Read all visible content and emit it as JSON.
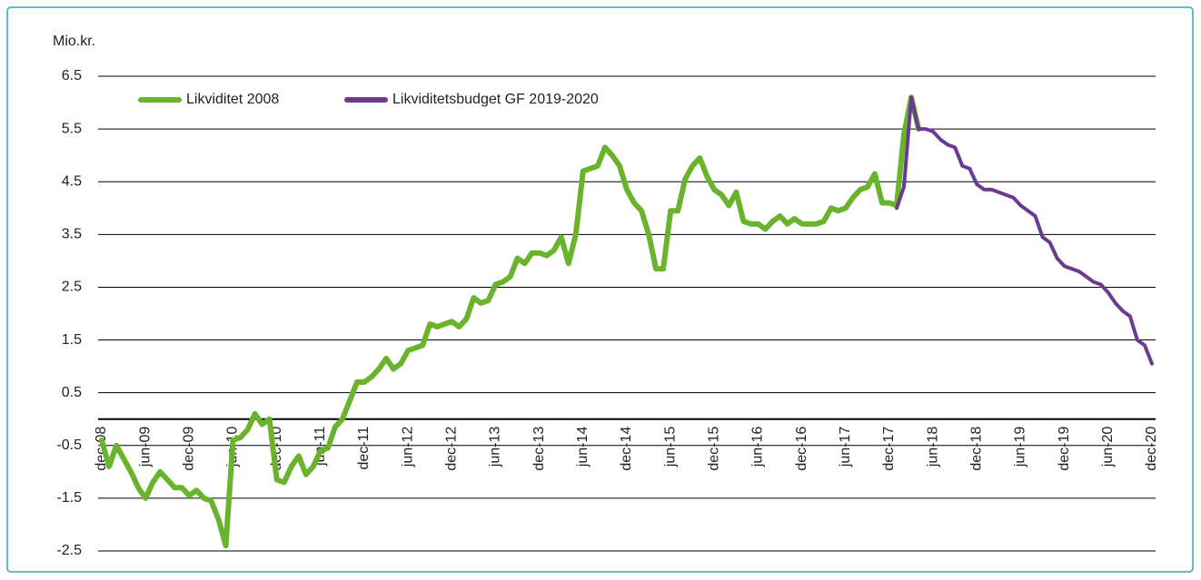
{
  "chart_data": {
    "type": "line",
    "y_label": "Mio.kr.",
    "categories": [
      "dec-08",
      null,
      null,
      null,
      null,
      null,
      "jun-09",
      null,
      null,
      null,
      null,
      null,
      "dec-09",
      null,
      null,
      null,
      null,
      null,
      "jun-10",
      null,
      null,
      null,
      null,
      null,
      "dec-10",
      null,
      null,
      null,
      null,
      null,
      "jun-11",
      null,
      null,
      null,
      null,
      null,
      "dec-11",
      null,
      null,
      null,
      null,
      null,
      "jun-12",
      null,
      null,
      null,
      null,
      null,
      "dec-12",
      null,
      null,
      null,
      null,
      null,
      "jun-13",
      null,
      null,
      null,
      null,
      null,
      "dec-13",
      null,
      null,
      null,
      null,
      null,
      "jun-14",
      null,
      null,
      null,
      null,
      null,
      "dec-14",
      null,
      null,
      null,
      null,
      null,
      "jun-15",
      null,
      null,
      null,
      null,
      null,
      "dec-15",
      null,
      null,
      null,
      null,
      null,
      "jun-16",
      null,
      null,
      null,
      null,
      null,
      "dec-16",
      null,
      null,
      null,
      null,
      null,
      "jun-17",
      null,
      null,
      null,
      null,
      null,
      "dec-17",
      null,
      null,
      null,
      null,
      null,
      "jun-18",
      null,
      null,
      null,
      null,
      null,
      "dec-18",
      null,
      null,
      null,
      null,
      null,
      "jun-19",
      null,
      null,
      null,
      null,
      null,
      "dec-19",
      null,
      null,
      null,
      null,
      null,
      "jun-20",
      null,
      null,
      null,
      null,
      null,
      "dec-20"
    ],
    "series": [
      {
        "name": "Likviditet 2008",
        "color": "#6ab42d",
        "values": [
          -0.4,
          -0.9,
          -0.5,
          -0.75,
          -1.0,
          -1.3,
          -1.5,
          -1.2,
          -1.0,
          -1.15,
          -1.3,
          -1.3,
          -1.45,
          -1.35,
          -1.5,
          -1.55,
          -1.9,
          -2.4,
          -0.4,
          -0.35,
          -0.2,
          0.1,
          -0.1,
          0.0,
          -1.15,
          -1.2,
          -0.9,
          -0.7,
          -1.05,
          -0.9,
          -0.6,
          -0.55,
          -0.15,
          0.0,
          0.35,
          0.7,
          0.7,
          0.8,
          0.95,
          1.15,
          0.95,
          1.05,
          1.3,
          1.35,
          1.4,
          1.8,
          1.75,
          1.8,
          1.85,
          1.75,
          1.9,
          2.3,
          2.2,
          2.25,
          2.55,
          2.6,
          2.7,
          3.05,
          2.95,
          3.15,
          3.15,
          3.1,
          3.2,
          3.45,
          2.95,
          3.5,
          4.7,
          4.75,
          4.8,
          5.15,
          5.0,
          4.8,
          4.35,
          4.1,
          3.95,
          3.5,
          2.85,
          2.85,
          3.95,
          3.95,
          4.55,
          4.8,
          4.95,
          4.6,
          4.35,
          4.25,
          4.05,
          4.3,
          3.75,
          3.7,
          3.7,
          3.6,
          3.75,
          3.85,
          3.7,
          3.8,
          3.7,
          3.7,
          3.7,
          3.75,
          4.0,
          3.95,
          4.0,
          4.2,
          4.35,
          4.4,
          4.65,
          4.1,
          4.1,
          4.05,
          5.4,
          6.1,
          5.5,
          null,
          null,
          null,
          null,
          null,
          null,
          null,
          null,
          null,
          null,
          null,
          null,
          null,
          null,
          null,
          null,
          null,
          null,
          null,
          null,
          null,
          null,
          null,
          null,
          null,
          null,
          null,
          null,
          null,
          null,
          null,
          null
        ]
      },
      {
        "name": "Likviditetsbudget GF 2019-2020",
        "color": "#6b3a91",
        "values": [
          null,
          null,
          null,
          null,
          null,
          null,
          null,
          null,
          null,
          null,
          null,
          null,
          null,
          null,
          null,
          null,
          null,
          null,
          null,
          null,
          null,
          null,
          null,
          null,
          null,
          null,
          null,
          null,
          null,
          null,
          null,
          null,
          null,
          null,
          null,
          null,
          null,
          null,
          null,
          null,
          null,
          null,
          null,
          null,
          null,
          null,
          null,
          null,
          null,
          null,
          null,
          null,
          null,
          null,
          null,
          null,
          null,
          null,
          null,
          null,
          null,
          null,
          null,
          null,
          null,
          null,
          null,
          null,
          null,
          null,
          null,
          null,
          null,
          null,
          null,
          null,
          null,
          null,
          null,
          null,
          null,
          null,
          null,
          null,
          null,
          null,
          null,
          null,
          null,
          null,
          null,
          null,
          null,
          null,
          null,
          null,
          null,
          null,
          null,
          null,
          null,
          null,
          null,
          null,
          null,
          null,
          null,
          null,
          null,
          4.0,
          4.4,
          6.1,
          5.5,
          5.5,
          5.45,
          5.3,
          5.2,
          5.15,
          4.8,
          4.75,
          4.45,
          4.35,
          4.35,
          4.3,
          4.25,
          4.2,
          4.05,
          3.95,
          3.85,
          3.45,
          3.35,
          3.05,
          2.9,
          2.85,
          2.8,
          2.7,
          2.6,
          2.55,
          2.4,
          2.2,
          2.05,
          1.95,
          1.5,
          1.4,
          1.05
        ]
      }
    ],
    "ylim": [
      -2.5,
      6.5
    ],
    "yticks": [
      -2.5,
      -1.5,
      -0.5,
      0.5,
      1.5,
      2.5,
      3.5,
      4.5,
      5.5,
      6.5
    ],
    "grid": true,
    "legend": "top-left"
  }
}
